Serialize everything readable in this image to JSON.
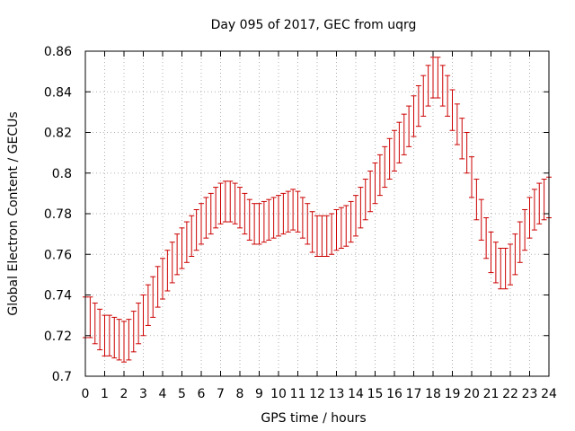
{
  "chart_data": {
    "type": "line",
    "title": "Day 095 of 2017, GEC from uqrg",
    "xlabel": "GPS time / hours",
    "ylabel": "Global Electron Content / GECUs",
    "xlim": [
      0,
      24
    ],
    "ylim": [
      0.7,
      0.86
    ],
    "xticks": [
      0,
      1,
      2,
      3,
      4,
      5,
      6,
      7,
      8,
      9,
      10,
      11,
      12,
      13,
      14,
      15,
      16,
      17,
      18,
      19,
      20,
      21,
      22,
      23,
      24
    ],
    "yticks": [
      0.7,
      0.72,
      0.74,
      0.76,
      0.78,
      0.8,
      0.82,
      0.84,
      0.86
    ],
    "ytick_labels": [
      "0.7",
      "0.72",
      "0.74",
      "0.76",
      "0.78",
      "0.8",
      "0.82",
      "0.84",
      "0.86"
    ],
    "grid": true,
    "error_bar": 0.01,
    "series": [
      {
        "color": "#cc0000",
        "x": [
          0,
          0.25,
          0.5,
          0.75,
          1,
          1.25,
          1.5,
          1.75,
          2,
          2.25,
          2.5,
          2.75,
          3,
          3.25,
          3.5,
          3.75,
          4,
          4.25,
          4.5,
          4.75,
          5,
          5.25,
          5.5,
          5.75,
          6,
          6.25,
          6.5,
          6.75,
          7,
          7.25,
          7.5,
          7.75,
          8,
          8.25,
          8.5,
          8.75,
          9,
          9.25,
          9.5,
          9.75,
          10,
          10.25,
          10.5,
          10.75,
          11,
          11.25,
          11.5,
          11.75,
          12,
          12.25,
          12.5,
          12.75,
          13,
          13.25,
          13.5,
          13.75,
          14,
          14.25,
          14.5,
          14.75,
          15,
          15.25,
          15.5,
          15.75,
          16,
          16.25,
          16.5,
          16.75,
          17,
          17.25,
          17.5,
          17.75,
          18,
          18.25,
          18.5,
          18.75,
          19,
          19.25,
          19.5,
          19.75,
          20,
          20.25,
          20.5,
          20.75,
          21,
          21.25,
          21.5,
          21.75,
          22,
          22.25,
          22.5,
          22.75,
          23,
          23.25,
          23.5,
          23.75,
          24
        ],
        "y": [
          0.729,
          0.729,
          0.726,
          0.723,
          0.72,
          0.72,
          0.719,
          0.718,
          0.717,
          0.718,
          0.722,
          0.726,
          0.73,
          0.735,
          0.739,
          0.744,
          0.748,
          0.752,
          0.756,
          0.76,
          0.763,
          0.766,
          0.769,
          0.772,
          0.775,
          0.778,
          0.78,
          0.783,
          0.785,
          0.786,
          0.786,
          0.785,
          0.783,
          0.78,
          0.777,
          0.775,
          0.775,
          0.776,
          0.777,
          0.778,
          0.779,
          0.78,
          0.781,
          0.782,
          0.781,
          0.778,
          0.775,
          0.771,
          0.769,
          0.769,
          0.769,
          0.77,
          0.772,
          0.773,
          0.774,
          0.776,
          0.779,
          0.783,
          0.787,
          0.791,
          0.795,
          0.799,
          0.803,
          0.807,
          0.811,
          0.815,
          0.819,
          0.823,
          0.828,
          0.833,
          0.838,
          0.843,
          0.847,
          0.847,
          0.843,
          0.838,
          0.831,
          0.824,
          0.817,
          0.81,
          0.798,
          0.787,
          0.777,
          0.768,
          0.761,
          0.756,
          0.753,
          0.753,
          0.755,
          0.76,
          0.766,
          0.772,
          0.778,
          0.782,
          0.785,
          0.787,
          0.788
        ]
      }
    ]
  }
}
